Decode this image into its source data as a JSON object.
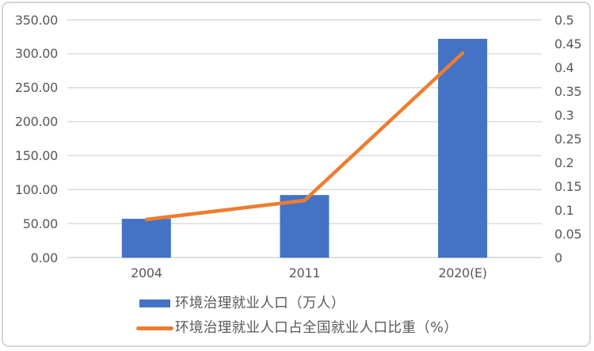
{
  "chart_data": {
    "type": "combo",
    "categories": [
      "2004",
      "2011",
      "2020(E)"
    ],
    "series": [
      {
        "name": "环境治理就业人口（万人）",
        "type": "bar",
        "axis": "left",
        "color": "#4472c4",
        "values": [
          57,
          92,
          322
        ]
      },
      {
        "name": "环境治理就业人口占全国就业人口比重（%）",
        "type": "line",
        "axis": "right",
        "color": "#ed7d31",
        "values": [
          0.08,
          0.12,
          0.43
        ]
      }
    ],
    "title": "",
    "xlabel": "",
    "ylabel": "",
    "left_axis": {
      "min": 0,
      "max": 350,
      "step": 50,
      "tick_labels": [
        "0.00",
        "50.00",
        "100.00",
        "150.00",
        "200.00",
        "250.00",
        "300.00",
        "350.00"
      ]
    },
    "right_axis": {
      "min": 0,
      "max": 0.5,
      "step": 0.05,
      "tick_labels": [
        "0",
        "0.05",
        "0.1",
        "0.15",
        "0.2",
        "0.25",
        "0.3",
        "0.35",
        "0.4",
        "0.45",
        "0.5"
      ]
    },
    "grid": true,
    "gridline_color": "#d9d9d9",
    "axis_label_color": "#595959",
    "legend_position": "bottom-left"
  }
}
